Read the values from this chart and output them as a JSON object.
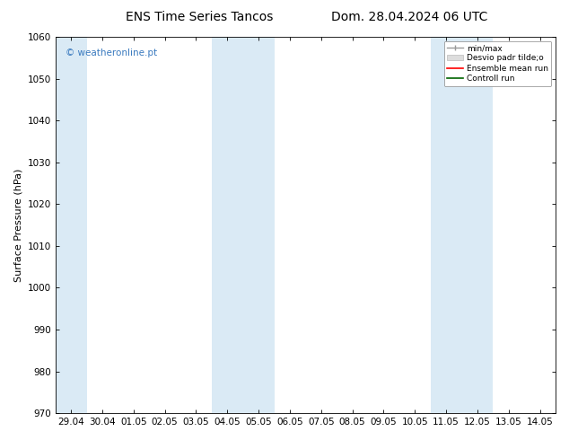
{
  "title_left": "ENS Time Series Tancos",
  "title_right": "Dom. 28.04.2024 06 UTC",
  "ylabel": "Surface Pressure (hPa)",
  "ylim": [
    970,
    1060
  ],
  "yticks": [
    970,
    980,
    990,
    1000,
    1010,
    1020,
    1030,
    1040,
    1050,
    1060
  ],
  "xtick_labels": [
    "29.04",
    "30.04",
    "01.05",
    "02.05",
    "03.05",
    "04.05",
    "05.05",
    "06.05",
    "07.05",
    "08.05",
    "09.05",
    "10.05",
    "11.05",
    "12.05",
    "13.05",
    "14.05"
  ],
  "band_color": "#daeaf5",
  "watermark_text": "© weatheronline.pt",
  "watermark_color": "#3a7abf",
  "legend_label_minmax": "min/max",
  "legend_label_desvio": "Desvio padr tilde;o",
  "legend_label_ensemble": "Ensemble mean run",
  "legend_label_control": "Controll run",
  "bg_color": "#ffffff",
  "title_fontsize": 10,
  "axis_fontsize": 8,
  "tick_fontsize": 7.5
}
